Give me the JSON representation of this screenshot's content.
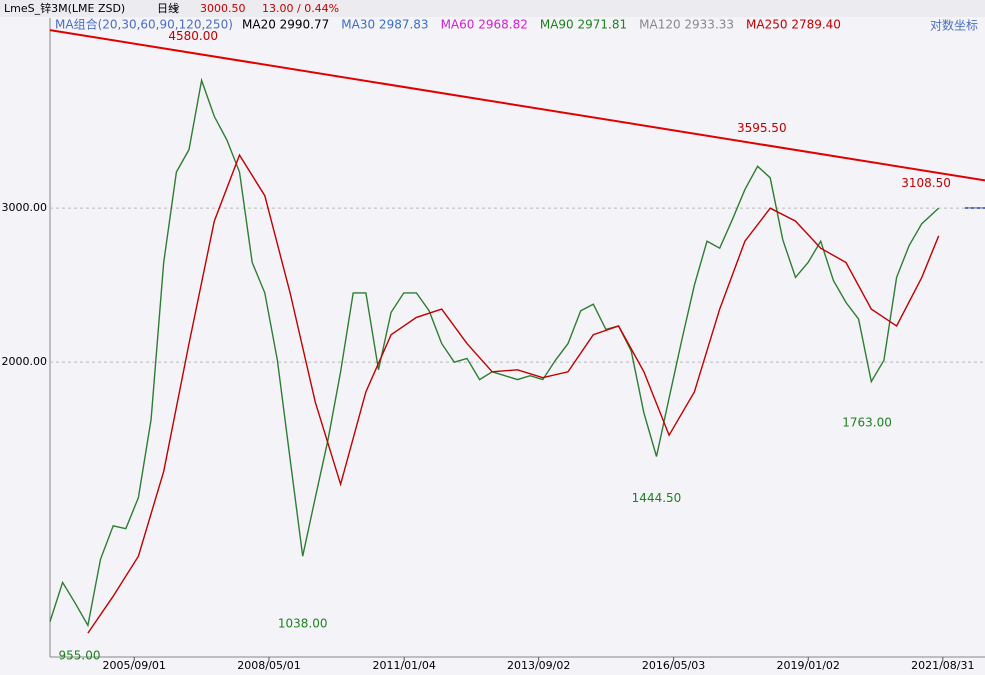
{
  "header": {
    "symbol": "LmeS_锌3M(LME ZSD)",
    "period": "日线",
    "price": "3000.50",
    "change": "13.00 / 0.44%"
  },
  "toolbar": {
    "ma_group": "MA组合(20,30,60,90,120,250)",
    "items": [
      {
        "text": "MA20 2990.77",
        "color": "#000000"
      },
      {
        "text": "MA30 2987.83",
        "color": "#3a6fc0"
      },
      {
        "text": "MA60 2968.82",
        "color": "#d020d0"
      },
      {
        "text": "MA90 2971.81",
        "color": "#208020"
      },
      {
        "text": "MA120 2933.33",
        "color": "#888888"
      },
      {
        "text": "MA250 2789.40",
        "color": "#c00000"
      }
    ],
    "scale_mode": "对数坐标"
  },
  "chart_data": {
    "type": "line",
    "log_scale": true,
    "grid": true,
    "xlim": [
      "2004/01",
      "2022/07"
    ],
    "xticks": [
      "2005/09/01",
      "2008/05/01",
      "2011/01/04",
      "2013/09/02",
      "2016/05/03",
      "2019/01/02",
      "2021/08/31"
    ],
    "ylim": [
      925,
      4950
    ],
    "yticks": [
      {
        "value": 2000,
        "label": "2000.00"
      },
      {
        "value": 3000,
        "label": "3000.00"
      }
    ],
    "series": [
      {
        "color": "#2e7d32",
        "x": [
          "2004/01",
          "2004/04",
          "2004/07",
          "2004/10",
          "2005/01",
          "2005/04",
          "2005/07",
          "2005/10",
          "2006/01",
          "2006/04",
          "2006/07",
          "2006/10",
          "2007/01",
          "2007/04",
          "2007/07",
          "2007/10",
          "2008/01",
          "2008/04",
          "2008/07",
          "2008/10",
          "2009/01",
          "2009/04",
          "2009/07",
          "2009/10",
          "2010/01",
          "2010/04",
          "2010/07",
          "2010/10",
          "2011/01",
          "2011/04",
          "2011/07",
          "2011/10",
          "2012/01",
          "2012/04",
          "2012/07",
          "2012/10",
          "2013/01",
          "2013/04",
          "2013/07",
          "2013/10",
          "2014/01",
          "2014/04",
          "2014/07",
          "2014/10",
          "2015/01",
          "2015/04",
          "2015/07",
          "2015/10",
          "2016/01",
          "2016/04",
          "2016/07",
          "2016/10",
          "2017/01",
          "2017/04",
          "2017/07",
          "2017/10",
          "2018/01",
          "2018/04",
          "2018/07",
          "2018/10",
          "2019/01",
          "2019/04",
          "2019/07",
          "2019/10",
          "2020/01",
          "2020/04",
          "2020/07",
          "2020/10",
          "2021/01",
          "2021/04",
          "2021/08"
        ],
        "values": [
          1010,
          1120,
          1060,
          1000,
          1190,
          1300,
          1290,
          1400,
          1720,
          2600,
          3300,
          3500,
          4200,
          3820,
          3590,
          3300,
          2600,
          2400,
          2010,
          1550,
          1200,
          1400,
          1630,
          1950,
          2400,
          2400,
          1960,
          2280,
          2400,
          2400,
          2290,
          2100,
          2000,
          2020,
          1910,
          1950,
          1930,
          1910,
          1930,
          1910,
          2010,
          2100,
          2290,
          2330,
          2180,
          2200,
          2060,
          1750,
          1560,
          1820,
          2120,
          2450,
          2750,
          2700,
          2910,
          3150,
          3350,
          3250,
          2760,
          2500,
          2600,
          2750,
          2480,
          2340,
          2240,
          1900,
          2010,
          2500,
          2720,
          2880,
          3000.5
        ]
      },
      {
        "color": "#c00000",
        "x": [
          "2004/10",
          "2005/04",
          "2005/10",
          "2006/04",
          "2006/10",
          "2007/04",
          "2007/10",
          "2008/04",
          "2008/10",
          "2009/04",
          "2009/10",
          "2010/04",
          "2010/10",
          "2011/04",
          "2011/10",
          "2012/04",
          "2012/10",
          "2013/04",
          "2013/10",
          "2014/04",
          "2014/10",
          "2015/04",
          "2015/10",
          "2016/04",
          "2016/10",
          "2017/04",
          "2017/10",
          "2018/04",
          "2018/10",
          "2019/04",
          "2019/10",
          "2020/04",
          "2020/10",
          "2021/04",
          "2021/08"
        ],
        "values": [
          980,
          1080,
          1200,
          1500,
          2100,
          2900,
          3450,
          3100,
          2400,
          1800,
          1450,
          1850,
          2150,
          2250,
          2300,
          2100,
          1950,
          1960,
          1920,
          1950,
          2150,
          2200,
          1950,
          1650,
          1850,
          2300,
          2750,
          3000,
          2900,
          2700,
          2600,
          2300,
          2200,
          2500,
          2789.4
        ]
      },
      {
        "color": "#e00000",
        "x": [
          "2004/01",
          "2022/07"
        ],
        "values": [
          4795,
          3228
        ]
      }
    ],
    "annotations": [
      {
        "x": "2006/11",
        "value": 4580,
        "label": "4580.00",
        "color": "#c00000"
      },
      {
        "x": "2018/02",
        "value": 3595.5,
        "label": "3595.50",
        "color": "#c00000"
      },
      {
        "x": "2021/05",
        "value": 3108.5,
        "label": "3108.50",
        "color": "#c00000"
      },
      {
        "x": "2009/01",
        "value": 1038,
        "label": "1038.00",
        "color": "#208020"
      },
      {
        "x": "2016/01",
        "value": 1444.5,
        "label": "1444.50",
        "color": "#208020"
      },
      {
        "x": "2020/03",
        "value": 1763,
        "label": "1763.00",
        "color": "#208020"
      },
      {
        "x": "2004/08",
        "value": 955,
        "label": "955.00",
        "color": "#208020"
      }
    ]
  }
}
